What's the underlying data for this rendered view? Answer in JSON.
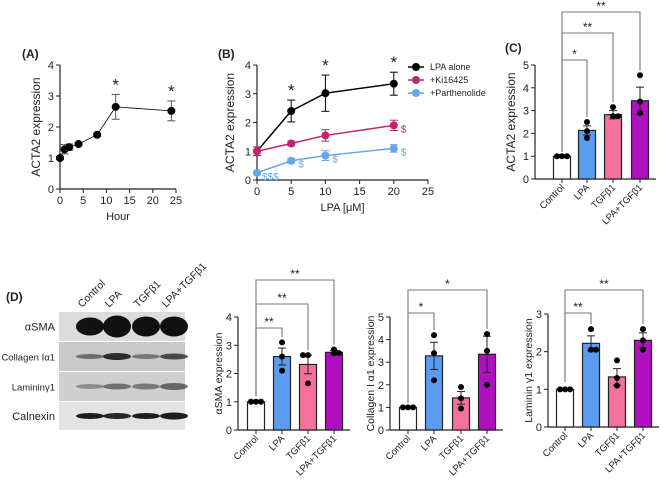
{
  "chart_data": [
    {
      "panel": "(A)",
      "type": "line",
      "xlabel": "Hour",
      "ylabel": "ACTA2 expression",
      "xlim": [
        0,
        25
      ],
      "ylim": [
        0,
        4
      ],
      "xticks": [
        "0",
        "5",
        "10",
        "15",
        "20",
        "25"
      ],
      "yticks": [
        "0",
        "1",
        "2",
        "3",
        "4"
      ],
      "series": [
        {
          "color": "#000000",
          "x": [
            0,
            1,
            2,
            4,
            8,
            12,
            24
          ],
          "y": [
            1,
            1.28,
            1.35,
            1.45,
            1.75,
            2.65,
            2.52
          ],
          "err": [
            0.05,
            0.15,
            0.1,
            0.05,
            0.05,
            0.4,
            0.32
          ],
          "annotations": [
            "",
            "",
            "",
            "",
            "",
            "*",
            "*"
          ]
        }
      ]
    },
    {
      "panel": "(B)",
      "type": "line",
      "xlabel": "LPA [μM]",
      "ylabel": "ACTA2 expression",
      "xlim": [
        0,
        25
      ],
      "ylim": [
        0,
        4
      ],
      "xticks": [
        "0",
        "5",
        "10",
        "15",
        "20",
        "25"
      ],
      "yticks": [
        "0",
        "1",
        "2",
        "3",
        "4"
      ],
      "legend_position": "top-right",
      "series": [
        {
          "name": "LPA alone",
          "color": "#000000",
          "x": [
            0,
            5,
            10,
            20
          ],
          "y": [
            1,
            2.4,
            3.02,
            3.35
          ],
          "err": [
            0.15,
            0.38,
            0.63,
            0.4
          ],
          "annotations": [
            "",
            "*",
            "*",
            "*"
          ]
        },
        {
          "name": "+Ki16425",
          "color": "#c0266b",
          "x": [
            0,
            5,
            10,
            20
          ],
          "y": [
            1,
            1.27,
            1.55,
            1.9
          ],
          "err": [
            0.15,
            0.08,
            0.2,
            0.18
          ],
          "annotations": [
            "",
            "",
            "",
            "$"
          ]
        },
        {
          "name": "+Parthenolide",
          "color": "#66a6ea",
          "x": [
            0,
            5,
            10,
            20
          ],
          "y": [
            0.25,
            0.67,
            0.85,
            1.1
          ],
          "err": [
            0.05,
            0.08,
            0.17,
            0.13
          ],
          "annotations": [
            "$$$",
            "$",
            "$",
            "$"
          ]
        }
      ]
    },
    {
      "panel": "(C)",
      "type": "bar",
      "ylabel": "ACTA2 expression",
      "ylim": [
        0,
        5
      ],
      "yticks": [
        "0",
        "1",
        "2",
        "3",
        "4",
        "5"
      ],
      "categories": [
        "Control",
        "LPA",
        "TGFβ1",
        "LPA+TGFβ1"
      ],
      "values": [
        1,
        2.13,
        2.82,
        3.43
      ],
      "err": [
        0.02,
        0.2,
        0.18,
        0.6
      ],
      "points": [
        [
          1,
          1,
          1
        ],
        [
          2.5,
          1.8,
          2.1
        ],
        [
          3.15,
          2.75,
          2.75
        ],
        [
          4.55,
          3.4,
          2.9
        ]
      ],
      "significance": [
        {
          "from": "Control",
          "to": "LPA",
          "label": "*"
        },
        {
          "from": "Control",
          "to": "TGFβ1",
          "label": "**"
        },
        {
          "from": "Control",
          "to": "LPA+TGFβ1",
          "label": "**"
        }
      ]
    },
    {
      "panel": "",
      "type": "bar",
      "ylabel": "αSMA expression",
      "ylim": [
        0,
        4
      ],
      "yticks": [
        "0",
        "1",
        "2",
        "3",
        "4"
      ],
      "categories": [
        "Control",
        "LPA",
        "TGFβ1",
        "LPA+TGFβ1"
      ],
      "values": [
        1,
        2.6,
        2.32,
        2.75
      ],
      "err": [
        0.01,
        0.3,
        0.33,
        0.07
      ],
      "points": [
        [
          1,
          1,
          1
        ],
        [
          3.1,
          2.6,
          2.1
        ],
        [
          2.65,
          2.65,
          1.65
        ],
        [
          2.85,
          2.72,
          2.72
        ]
      ],
      "significance": [
        {
          "from": "Control",
          "to": "LPA",
          "label": "**"
        },
        {
          "from": "Control",
          "to": "TGFβ1",
          "label": "**"
        },
        {
          "from": "Control",
          "to": "LPA+TGFβ1",
          "label": "**"
        }
      ]
    },
    {
      "panel": "",
      "type": "bar",
      "ylabel": "Collagen I α1 expression",
      "ylim": [
        0,
        5
      ],
      "yticks": [
        "0",
        "1",
        "2",
        "3",
        "4",
        "5"
      ],
      "categories": [
        "Control",
        "LPA",
        "TGFβ1",
        "LPA+TGFβ1"
      ],
      "values": [
        1,
        3.28,
        1.42,
        3.35
      ],
      "err": [
        0.03,
        0.6,
        0.28,
        0.8
      ],
      "points": [
        [
          1,
          1,
          1
        ],
        [
          4.2,
          3.4,
          2.2
        ],
        [
          1.9,
          1.4,
          0.95
        ],
        [
          4.25,
          3.5,
          2.0
        ]
      ],
      "significance": [
        {
          "from": "Control",
          "to": "LPA",
          "label": "*"
        },
        {
          "from": "Control",
          "to": "LPA+TGFβ1",
          "label": "*"
        }
      ]
    },
    {
      "panel": "",
      "type": "bar",
      "ylabel": "Laminin γ1 expression",
      "ylim": [
        0,
        3
      ],
      "yticks": [
        "0",
        "1",
        "2",
        "3"
      ],
      "categories": [
        "Control",
        "LPA",
        "TGFβ1",
        "LPA+TGFβ1"
      ],
      "values": [
        1,
        2.22,
        1.33,
        2.3
      ],
      "err": [
        0.01,
        0.2,
        0.22,
        0.2
      ],
      "points": [
        [
          1,
          1,
          1
        ],
        [
          2.6,
          2.05,
          2.05
        ],
        [
          1.77,
          1.3,
          1.1
        ],
        [
          2.6,
          2.3,
          2.05
        ]
      ],
      "significance": [
        {
          "from": "Control",
          "to": "LPA",
          "label": "**"
        },
        {
          "from": "Control",
          "to": "LPA+TGFβ1",
          "label": "**"
        }
      ]
    }
  ],
  "bar_colors": [
    "#ffffff",
    "#5b9cf0",
    "#f5709a",
    "#b010c0"
  ],
  "blot": {
    "panel": "(D)",
    "lanes": [
      "Control",
      "LPA",
      "TGFβ1",
      "LPA+TGFβ1"
    ],
    "rows": [
      "αSMA",
      "Collagen Iα1",
      "Lamininγ1",
      "Calnexin"
    ]
  }
}
